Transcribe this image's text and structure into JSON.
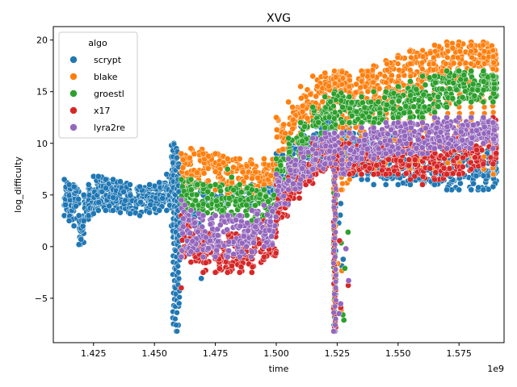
{
  "chart_data": {
    "type": "scatter",
    "title": "XVG",
    "xlabel": "time",
    "ylabel": "log_difficulty",
    "x_offset_label": "1e9",
    "xlim": [
      1.4085,
      1.5935
    ],
    "ylim": [
      -9.3,
      21.3
    ],
    "x_ticks": [
      1.425,
      1.45,
      1.475,
      1.5,
      1.525,
      1.55,
      1.575
    ],
    "x_tick_labels": [
      "1.425",
      "1.450",
      "1.475",
      "1.500",
      "1.525",
      "1.550",
      "1.575"
    ],
    "y_ticks": [
      -5,
      0,
      5,
      10,
      15,
      20
    ],
    "y_tick_labels": [
      "−5",
      "0",
      "5",
      "10",
      "15",
      "20"
    ],
    "grid": false,
    "legend": {
      "title": "algo",
      "placement": "top-left"
    },
    "series": [
      {
        "name": "scrypt",
        "color": "#1f77b4",
        "x": [
          1.413,
          1.415,
          1.417,
          1.419,
          1.421,
          1.423,
          1.425,
          1.427,
          1.43,
          1.433,
          1.436,
          1.44,
          1.444,
          1.448,
          1.452,
          1.455,
          1.457,
          1.458,
          1.459,
          1.46,
          1.47,
          1.48,
          1.49,
          1.495,
          1.5,
          1.505,
          1.51,
          1.515,
          1.52,
          1.524,
          1.528,
          1.53,
          1.535,
          1.54,
          1.545,
          1.55,
          1.555,
          1.56,
          1.565,
          1.57,
          1.575,
          1.58,
          1.585,
          1.589
        ],
        "y": [
          4.5,
          4.3,
          4.8,
          1.5,
          3.8,
          4.2,
          5.0,
          5.5,
          5.2,
          5.0,
          4.8,
          4.6,
          4.5,
          4.8,
          5.0,
          5.5,
          6.5,
          3.0,
          2.0,
          4.0,
          4.5,
          5.0,
          5.2,
          5.5,
          7.0,
          8.0,
          9.5,
          10.0,
          10.5,
          9.0,
          9.5,
          9.0,
          9.0,
          8.5,
          8.5,
          8.0,
          8.0,
          7.5,
          7.5,
          7.5,
          7.5,
          7.5,
          7.5,
          7.5
        ],
        "y_min": [
          3.0,
          2.5,
          2.0,
          0.2,
          2.5,
          3.0,
          3.2,
          3.5,
          3.5,
          3.5,
          3.3,
          3.2,
          3.0,
          3.3,
          3.5,
          3.5,
          2.0,
          -7.5,
          -8.2,
          -5.5,
          4.0,
          4.0,
          4.5,
          5.0,
          5.0,
          5.5,
          6.5,
          7.0,
          7.5,
          -8.2,
          7.0,
          6.5,
          6.5,
          6.0,
          6.0,
          6.0,
          6.0,
          6.0,
          6.0,
          5.5,
          5.5,
          5.5,
          5.5,
          5.8
        ],
        "y_max": [
          6.5,
          6.0,
          5.8,
          3.0,
          5.0,
          6.0,
          6.8,
          6.8,
          6.5,
          6.5,
          6.3,
          6.0,
          5.8,
          6.0,
          6.2,
          7.0,
          9.8,
          10.0,
          9.5,
          8.0,
          5.0,
          5.5,
          6.0,
          6.5,
          9.0,
          10.5,
          12.0,
          12.5,
          12.5,
          12.0,
          12.0,
          11.5,
          11.0,
          11.0,
          11.0,
          11.0,
          10.5,
          10.5,
          10.5,
          10.5,
          10.0,
          10.0,
          10.0,
          10.5
        ]
      },
      {
        "name": "blake",
        "color": "#ff7f0e",
        "x": [
          1.461,
          1.465,
          1.47,
          1.475,
          1.48,
          1.485,
          1.49,
          1.495,
          1.5,
          1.505,
          1.51,
          1.515,
          1.52,
          1.524,
          1.527,
          1.53,
          1.535,
          1.54,
          1.545,
          1.55,
          1.555,
          1.56,
          1.565,
          1.57,
          1.575,
          1.58,
          1.585,
          1.589
        ],
        "y": [
          7.5,
          7.8,
          8.0,
          7.5,
          7.0,
          7.0,
          6.5,
          7.0,
          10.0,
          12.0,
          13.5,
          14.5,
          15.0,
          15.5,
          15.0,
          15.0,
          15.5,
          15.5,
          16.0,
          16.5,
          17.0,
          17.5,
          18.0,
          18.0,
          18.5,
          18.5,
          18.5,
          18.0
        ],
        "y_min": [
          3.0,
          5.5,
          6.0,
          5.5,
          5.0,
          5.0,
          5.0,
          6.0,
          8.0,
          10.0,
          11.0,
          12.5,
          13.5,
          -8.2,
          5.5,
          6.5,
          7.0,
          7.5,
          7.5,
          7.5,
          7.5,
          7.0,
          7.5,
          7.5,
          7.5,
          7.5,
          7.5,
          7.0
        ],
        "y_max": [
          9.0,
          9.5,
          9.0,
          9.0,
          8.5,
          8.5,
          8.0,
          8.5,
          12.5,
          14.0,
          15.5,
          16.5,
          16.8,
          17.0,
          17.0,
          16.5,
          17.0,
          17.5,
          18.0,
          18.5,
          19.0,
          19.0,
          19.5,
          19.8,
          19.8,
          19.8,
          19.8,
          19.0
        ]
      },
      {
        "name": "groestl",
        "color": "#2ca02c",
        "x": [
          1.461,
          1.465,
          1.47,
          1.475,
          1.48,
          1.485,
          1.49,
          1.495,
          1.5,
          1.505,
          1.51,
          1.515,
          1.52,
          1.524,
          1.53,
          1.535,
          1.54,
          1.545,
          1.55,
          1.555,
          1.56,
          1.565,
          1.57,
          1.575,
          1.58,
          1.585,
          1.589
        ],
        "y": [
          5.0,
          5.0,
          4.5,
          4.5,
          4.5,
          4.5,
          4.0,
          4.0,
          7.0,
          8.5,
          10.0,
          12.0,
          13.0,
          13.5,
          13.0,
          13.0,
          13.0,
          13.5,
          14.0,
          14.0,
          14.5,
          15.0,
          15.5,
          15.5,
          15.5,
          16.0,
          15.5
        ],
        "y_min": [
          3.0,
          3.5,
          3.0,
          3.0,
          3.0,
          3.0,
          2.5,
          3.0,
          5.5,
          6.5,
          8.0,
          10.0,
          11.5,
          -8.0,
          12.0,
          12.0,
          12.0,
          12.0,
          12.5,
          12.5,
          12.5,
          13.0,
          13.5,
          14.0,
          14.0,
          14.0,
          14.0
        ],
        "y_max": [
          6.5,
          6.5,
          6.0,
          6.0,
          7.5,
          6.0,
          5.5,
          5.5,
          8.5,
          10.5,
          12.0,
          13.5,
          14.5,
          15.0,
          14.5,
          14.5,
          15.0,
          15.0,
          15.5,
          16.0,
          16.5,
          16.5,
          17.0,
          17.0,
          17.0,
          17.0,
          16.5
        ]
      },
      {
        "name": "x17",
        "color": "#d62728",
        "x": [
          1.461,
          1.465,
          1.47,
          1.475,
          1.48,
          1.485,
          1.49,
          1.495,
          1.5,
          1.505,
          1.51,
          1.515,
          1.52,
          1.524,
          1.53,
          1.535,
          1.54,
          1.545,
          1.55,
          1.555,
          1.56,
          1.565,
          1.57,
          1.575,
          1.58,
          1.585,
          1.589
        ],
        "y": [
          1.0,
          0.0,
          -0.5,
          -1.0,
          -0.5,
          -1.0,
          0.0,
          0.5,
          4.0,
          6.0,
          7.5,
          8.5,
          9.0,
          8.5,
          8.5,
          8.5,
          8.5,
          8.5,
          8.5,
          8.5,
          8.5,
          8.5,
          9.0,
          9.0,
          9.5,
          10.0,
          10.5
        ],
        "y_min": [
          -4.0,
          -1.5,
          -2.5,
          -2.5,
          -2.5,
          -2.5,
          -2.5,
          -1.0,
          2.5,
          4.5,
          6.0,
          7.0,
          7.5,
          -7.8,
          7.0,
          7.0,
          7.0,
          7.0,
          7.0,
          6.5,
          6.0,
          6.5,
          7.0,
          7.0,
          7.5,
          8.0,
          8.0
        ],
        "y_max": [
          3.0,
          2.0,
          1.5,
          1.0,
          1.5,
          1.0,
          2.0,
          2.5,
          6.0,
          7.5,
          9.0,
          10.0,
          10.5,
          10.0,
          10.0,
          10.0,
          10.0,
          10.0,
          10.0,
          10.0,
          10.5,
          10.5,
          11.0,
          11.0,
          11.5,
          12.0,
          12.5
        ]
      },
      {
        "name": "lyra2re",
        "color": "#9467bd",
        "x": [
          1.461,
          1.465,
          1.47,
          1.475,
          1.48,
          1.485,
          1.49,
          1.495,
          1.5,
          1.505,
          1.51,
          1.515,
          1.52,
          1.524,
          1.53,
          1.535,
          1.54,
          1.545,
          1.55,
          1.555,
          1.56,
          1.565,
          1.57,
          1.575,
          1.58,
          1.585,
          1.589
        ],
        "y": [
          2.0,
          1.5,
          1.0,
          1.0,
          1.0,
          1.0,
          1.5,
          2.0,
          5.5,
          7.0,
          8.0,
          9.0,
          9.5,
          9.0,
          9.5,
          10.0,
          10.0,
          10.5,
          10.5,
          10.5,
          10.5,
          11.0,
          11.0,
          11.0,
          11.5,
          11.5,
          11.0
        ],
        "y_min": [
          -1.0,
          -0.5,
          -1.0,
          -1.0,
          -1.0,
          -1.0,
          -0.5,
          0.0,
          4.0,
          5.5,
          6.5,
          7.5,
          8.0,
          -8.2,
          8.0,
          8.5,
          8.5,
          9.0,
          9.0,
          9.0,
          9.0,
          9.5,
          9.5,
          9.5,
          10.0,
          10.0,
          9.5
        ],
        "y_max": [
          4.5,
          3.5,
          3.0,
          3.0,
          3.0,
          3.0,
          3.5,
          4.0,
          7.0,
          8.5,
          9.5,
          10.5,
          11.0,
          11.0,
          11.0,
          11.5,
          11.5,
          12.0,
          12.0,
          12.0,
          12.0,
          12.5,
          12.5,
          12.5,
          12.5,
          12.5,
          12.0
        ]
      }
    ]
  }
}
